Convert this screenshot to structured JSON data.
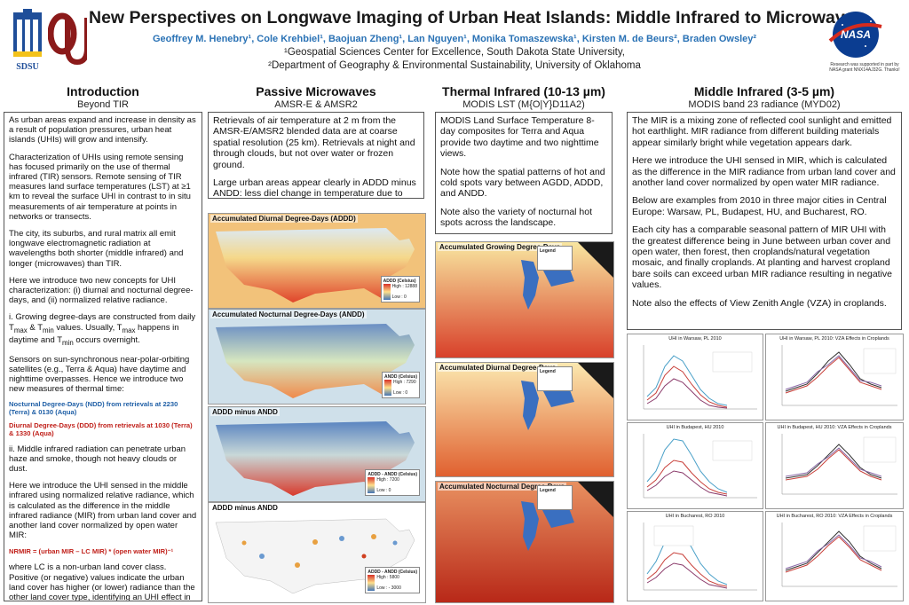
{
  "header": {
    "title": "New Perspectives on Longwave Imaging of Urban Heat Islands: Middle Infrared to Microwaves",
    "authors": "Geoffrey M. Henebry¹, Cole Krehbiel¹, Baojuan Zheng¹, Lan Nguyen¹, Monika Tomaszewska¹, Kirsten M. de Beurs², Braden Owsley²",
    "affiliation1": "¹Geospatial Sciences Center for Excellence, South Dakota State University,",
    "affiliation2": "²Department of Geography & Environmental Sustainability, University of Oklahoma",
    "sdsu_label": "SDSU",
    "nasa_label": "NASA",
    "acknowledgment": "Research was supported in part by NASA grant NNX14AJ32G. Thanks!"
  },
  "intro": {
    "heading": "Introduction",
    "subheading": "Beyond TIR",
    "p1": "As urban areas expand and increase in density as a result of population pressures, urban heat islands (UHIs) will grow and intensify.",
    "p2": "Characterization of UHIs using remote sensing has focused primarily on the use of thermal infrared (TIR) sensors. Remote sensing of TIR measures land surface temperatures (LST) at ≥1 km to reveal the surface UHI in contrast to in situ measurements of air temperature at points in networks or transects.",
    "p3": "The city, its suburbs, and rural matrix all emit longwave electromagnetic radiation at wavelengths both shorter (middle infrared) and longer (microwaves) than TIR.",
    "p4": "Here we introduce two new concepts for UHI characterization: (i) diurnal and nocturnal degree-days, and (ii) normalized relative radiance.",
    "p5_a": "i. Growing degree-days are constructed from daily T",
    "p5_max": "max",
    "p5_b": " & T",
    "p5_min": "min",
    "p5_c": " values. Usually, T",
    "p5_max2": "max",
    "p5_d": " happens in daytime and T",
    "p5_min2": "min",
    "p5_e": " occurs overnight.",
    "p6": "Sensors on sun-synchronous near-polar-orbiting satellites (e.g., Terra & Aqua) have daytime and nighttime overpasses. Hence we introduce two new measures of thermal time:",
    "ndd": "Nocturnal Degree-Days (NDD) from retrievals at 2230 (Terra) & 0130 (Aqua)",
    "ddd": "Diurnal Degree-Days (DDD) from retrievals at 1030 (Terra) & 1330 (Aqua)",
    "p7": "ii. Middle infrared radiation can penetrate urban haze and smoke, though not heavy clouds or dust.",
    "p8": "Here we introduce the UHI sensed in the middle infrared using normalized relative radiance, which is calculated as the difference in the middle infrared radiance (MIR) from urban land cover and another land cover normalized by open water MIR:",
    "formula": "NRMIR = (urban MIR – LC MIR) * (open water MIR)⁻¹",
    "p9": "where LC is a non-urban land cover class. Positive (or negative) values indicate the urban land cover has higher (or lower) radiance than the other land cover type, identifying an UHI effect in the MIR."
  },
  "passive": {
    "heading": "Passive Microwaves",
    "subheading": "AMSR-E & AMSR2",
    "p1": "Retrievals of air temperature at 2 m from the AMSR-E/AMSR2 blended data are at coarse spatial resolution (25 km). Retrievals at night and through clouds, but not over water or frozen ground.",
    "p2": "Large urban areas appear clearly in ADDD minus ANDD: less diel change in temperature due to UHI.",
    "maps": [
      {
        "label": "Accumulated Diurnal Degree-Days (ADDD)",
        "legend_title": "ADDD (Celsius)",
        "legend_high": "High : 12888",
        "legend_low": "Low : 0"
      },
      {
        "label": "Accumulated Nocturnal Degree-Days (ANDD)",
        "legend_title": "ANDD (Celsius)",
        "legend_high": "High : 7290",
        "legend_low": "Low : 0"
      },
      {
        "label": "ADDD minus ANDD",
        "legend_title": "ADDD - ANDD (Celsius)",
        "legend_high": "High : 7200",
        "legend_low": "Low : 0"
      },
      {
        "label": "ADDD minus ANDD",
        "legend_title": "ADDD - ANDD (Celsius)",
        "legend_high": "High : 5800",
        "legend_low": "Low : - 3000"
      }
    ]
  },
  "thermal": {
    "heading": "Thermal Infrared (10-13 µm)",
    "subheading": "MODIS LST (M{O|Y}D11A2)",
    "p1": "MODIS Land Surface Temperature 8-day composites for Terra and Aqua provide two daytime and two nighttime views.",
    "p2": "Note how the spatial patterns of hot and cold spots vary between AGDD, ADDD, and ANDD.",
    "p3": "Note also the variety of nocturnal hot spots across the landscape.",
    "maps": [
      {
        "label": "Accumulated Growing Degree-Days",
        "legend_title": "Legend"
      },
      {
        "label": "Accumulated Diurnal Degree-Days",
        "legend_title": "Legend"
      },
      {
        "label": "Accumulated Nocturnal Degree-Days",
        "legend_title": "Legend"
      }
    ]
  },
  "middle": {
    "heading": "Middle Infrared (3-5 µm)",
    "subheading": "MODIS band 23 radiance (MYD02)",
    "p1": "The MIR is a mixing zone of reflected cool sunlight and emitted hot earthlight.  MIR radiance from different building materials appear similarly bright while vegetation appears dark.",
    "p2": "Here we introduce the UHI sensed in MIR, which is calculated as the difference in the MIR radiance from urban land cover and another land cover normalized by open water MIR radiance.",
    "p3": "Below are examples from 2010 in three major cities in Central Europe: Warsaw, PL, Budapest, HU, and Bucharest, RO.",
    "p4": "Each city has a comparable seasonal pattern of MIR UHI with the greatest difference being in June between urban cover and open water, then forest, then croplands/natural vegetation mosaic, and finally croplands. At planting and harvest cropland bare soils can exceed urban MIR radiance resulting in negative values.",
    "p5": "Note also the effects of View Zenith Angle (VZA) in croplands.",
    "charts": [
      {
        "title": "UHI in Warsaw, PL 2010"
      },
      {
        "title": "UHI in Warsaw, PL 2010: VZA Effects in Croplands"
      },
      {
        "title": "UHI in Budapest, HU 2010"
      },
      {
        "title": "UHI in Budapest, HU 2010: VZA Effects in Croplands"
      },
      {
        "title": "UHI in Bucharest, RO 2010"
      },
      {
        "title": "UHI in Bucharest, RO 2010: VZA Effects in Croplands"
      }
    ]
  },
  "colors": {
    "accent_blue": "#2a72b5",
    "ou_red": "#8b1a1a",
    "ndd_blue": "#1f5fa6",
    "ddd_red": "#c0201a",
    "nasa_blue": "#0b3d91"
  }
}
